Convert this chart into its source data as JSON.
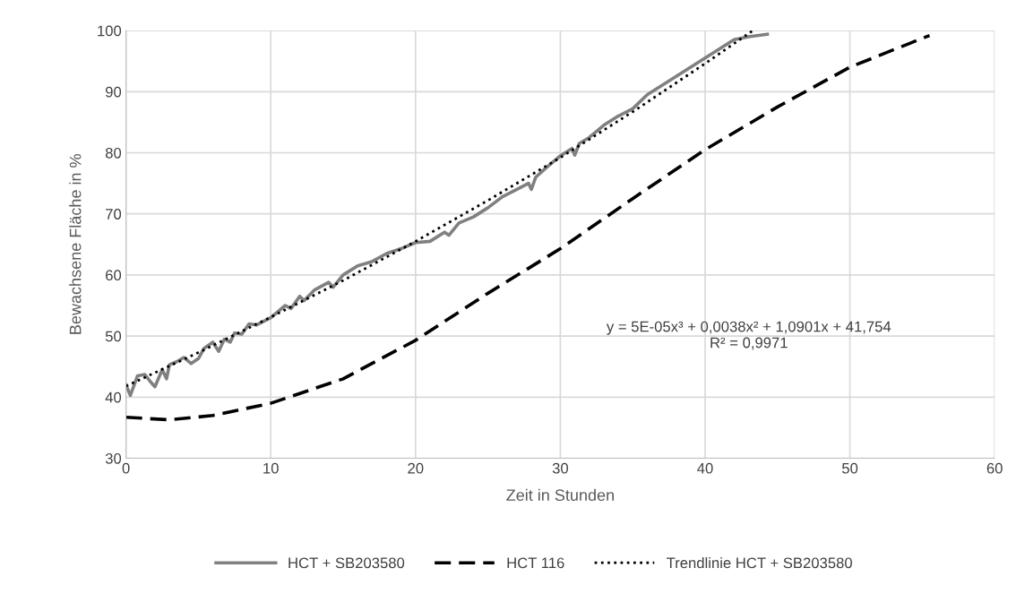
{
  "chart_data": {
    "type": "line",
    "xlabel": "Zeit in Stunden",
    "ylabel": "Bewachsene Fläche in %",
    "xlim": [
      0,
      60
    ],
    "xticks": [
      0,
      10,
      20,
      30,
      40,
      50,
      60
    ],
    "ylim": [
      30,
      100
    ],
    "yticks": [
      30,
      40,
      50,
      60,
      70,
      80,
      90,
      100
    ],
    "grid": true,
    "legend": "bottom",
    "annotations": [
      "y = 5E-05x³ + 0,0038x² + 1,0901x + 41,754\nR² = 0,9971"
    ],
    "series": [
      {
        "name": "HCT + SB203580",
        "color": "#808080",
        "line_style": "solid",
        "x": [
          0,
          0.3,
          0.8,
          1.3,
          1.7,
          2.0,
          2.5,
          2.8,
          3.0,
          3.5,
          4,
          4.5,
          5,
          5.4,
          6,
          6.4,
          6.8,
          7.2,
          7.5,
          8,
          8.5,
          9,
          10,
          11,
          11.4,
          12,
          12.3,
          13,
          14,
          14.3,
          15,
          16,
          17,
          18,
          19,
          20,
          21,
          22,
          22.3,
          23,
          24,
          25,
          26,
          27,
          27.8,
          28,
          28.3,
          29,
          30,
          30.8,
          31,
          31.3,
          32,
          33,
          34,
          35,
          36,
          37,
          38,
          39,
          40,
          41,
          42,
          43,
          44.3
        ],
        "values": [
          42,
          40.3,
          43.5,
          43.7,
          42.5,
          41.7,
          44.5,
          43,
          45.3,
          45.8,
          46.5,
          45.5,
          46.3,
          48,
          49,
          47.5,
          49.5,
          49,
          50.5,
          50.3,
          52,
          51.8,
          53,
          55,
          54.5,
          56.5,
          55.8,
          57.5,
          58.8,
          58,
          60,
          61.5,
          62.2,
          63.5,
          64.3,
          65.3,
          65.5,
          67,
          66.5,
          68.5,
          69.5,
          71,
          72.8,
          74,
          75,
          74,
          76,
          77.5,
          79.5,
          80.7,
          79.6,
          81.5,
          82.5,
          84.5,
          86,
          87.2,
          89.5,
          91,
          92.5,
          94,
          95.5,
          97,
          98.5,
          99,
          99.4
        ]
      },
      {
        "name": "HCT 116",
        "color": "#000000",
        "line_style": "dashed",
        "x": [
          0,
          3,
          6,
          10,
          15,
          20,
          25,
          30,
          35,
          40,
          45,
          50,
          55.5
        ],
        "values": [
          36.7,
          36.3,
          37,
          39,
          43,
          49.3,
          57,
          64.3,
          72.5,
          80.5,
          87.5,
          94,
          99.2
        ]
      },
      {
        "name": "Trendlinie HCT + SB203580",
        "color": "#000000",
        "line_style": "dotted",
        "x": [
          0,
          5,
          10,
          15,
          20,
          25,
          30,
          35,
          40,
          43.3
        ],
        "values": [
          41.8,
          47.3,
          53.1,
          59.1,
          65.5,
          72.2,
          79.2,
          86.7,
          94.6,
          100
        ]
      }
    ]
  }
}
